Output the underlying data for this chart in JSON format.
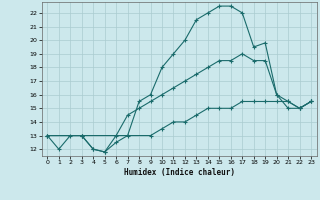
{
  "xlabel": "Humidex (Indice chaleur)",
  "ylabel": "",
  "background_color": "#cce8ec",
  "grid_color": "#aaccd0",
  "line_color": "#1a6b6b",
  "xlim": [
    -0.5,
    23.5
  ],
  "ylim": [
    11.5,
    22.8
  ],
  "xticks": [
    0,
    1,
    2,
    3,
    4,
    5,
    6,
    7,
    8,
    9,
    10,
    11,
    12,
    13,
    14,
    15,
    16,
    17,
    18,
    19,
    20,
    21,
    22,
    23
  ],
  "yticks": [
    12,
    13,
    14,
    15,
    16,
    17,
    18,
    19,
    20,
    21,
    22
  ],
  "line1_x": [
    0,
    1,
    2,
    3,
    4,
    5,
    6,
    7,
    8,
    9,
    10,
    11,
    12,
    13,
    14,
    15,
    16,
    17,
    18,
    19,
    20,
    21,
    22,
    23
  ],
  "line1_y": [
    13,
    12,
    13,
    13,
    12,
    11.8,
    12.5,
    13,
    15.5,
    16,
    18,
    19,
    20,
    21.5,
    22,
    22.5,
    22.5,
    22,
    19.5,
    19.8,
    16,
    15,
    15,
    15.5
  ],
  "line2_x": [
    0,
    3,
    4,
    5,
    6,
    7,
    8,
    9,
    10,
    11,
    12,
    13,
    14,
    15,
    16,
    17,
    18,
    19,
    20,
    21,
    22,
    23
  ],
  "line2_y": [
    13,
    13,
    12,
    11.8,
    13,
    14.5,
    15,
    15.5,
    16,
    16.5,
    17,
    17.5,
    18,
    18.5,
    18.5,
    19,
    18.5,
    18.5,
    16,
    15.5,
    15,
    15.5
  ],
  "line3_x": [
    0,
    3,
    9,
    10,
    11,
    12,
    13,
    14,
    15,
    16,
    17,
    18,
    19,
    20,
    21,
    22,
    23
  ],
  "line3_y": [
    13,
    13,
    13,
    13.5,
    14,
    14,
    14.5,
    15,
    15,
    15,
    15.5,
    15.5,
    15.5,
    15.5,
    15.5,
    15,
    15.5
  ]
}
